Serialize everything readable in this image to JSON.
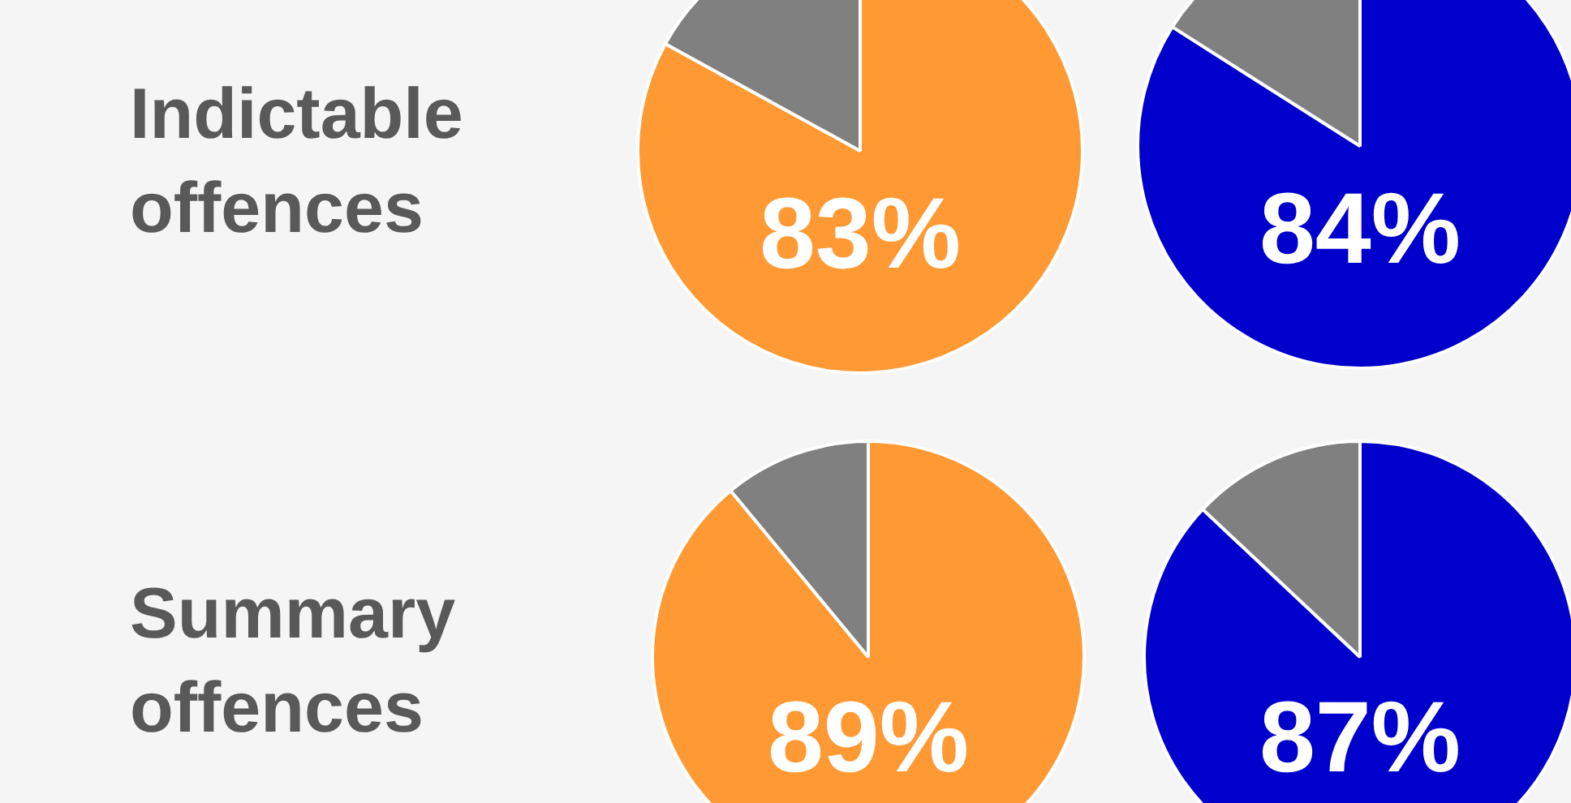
{
  "chart_data": [
    {
      "type": "pie",
      "title": "Indictable offences",
      "categories": [
        null,
        null
      ],
      "values": [
        83,
        17
      ],
      "colors": [
        "#ff9933",
        "#808080"
      ],
      "value_labels": [
        "83%",
        null
      ]
    },
    {
      "type": "pie",
      "categories": [
        null,
        null
      ],
      "values": [
        84,
        16
      ],
      "colors": [
        "#0000cc",
        "#808080"
      ],
      "value_labels": [
        "84%",
        null
      ]
    },
    {
      "type": "pie",
      "title": "Summary offences",
      "categories": [
        null,
        null
      ],
      "values": [
        89,
        11
      ],
      "colors": [
        "#ff9933",
        "#808080"
      ],
      "value_labels": [
        "89%",
        null
      ]
    },
    {
      "type": "pie",
      "categories": [
        null,
        null
      ],
      "values": [
        87,
        13
      ],
      "colors": [
        "#0000cc",
        "#808080"
      ],
      "value_labels": [
        "87%",
        null
      ]
    }
  ]
}
